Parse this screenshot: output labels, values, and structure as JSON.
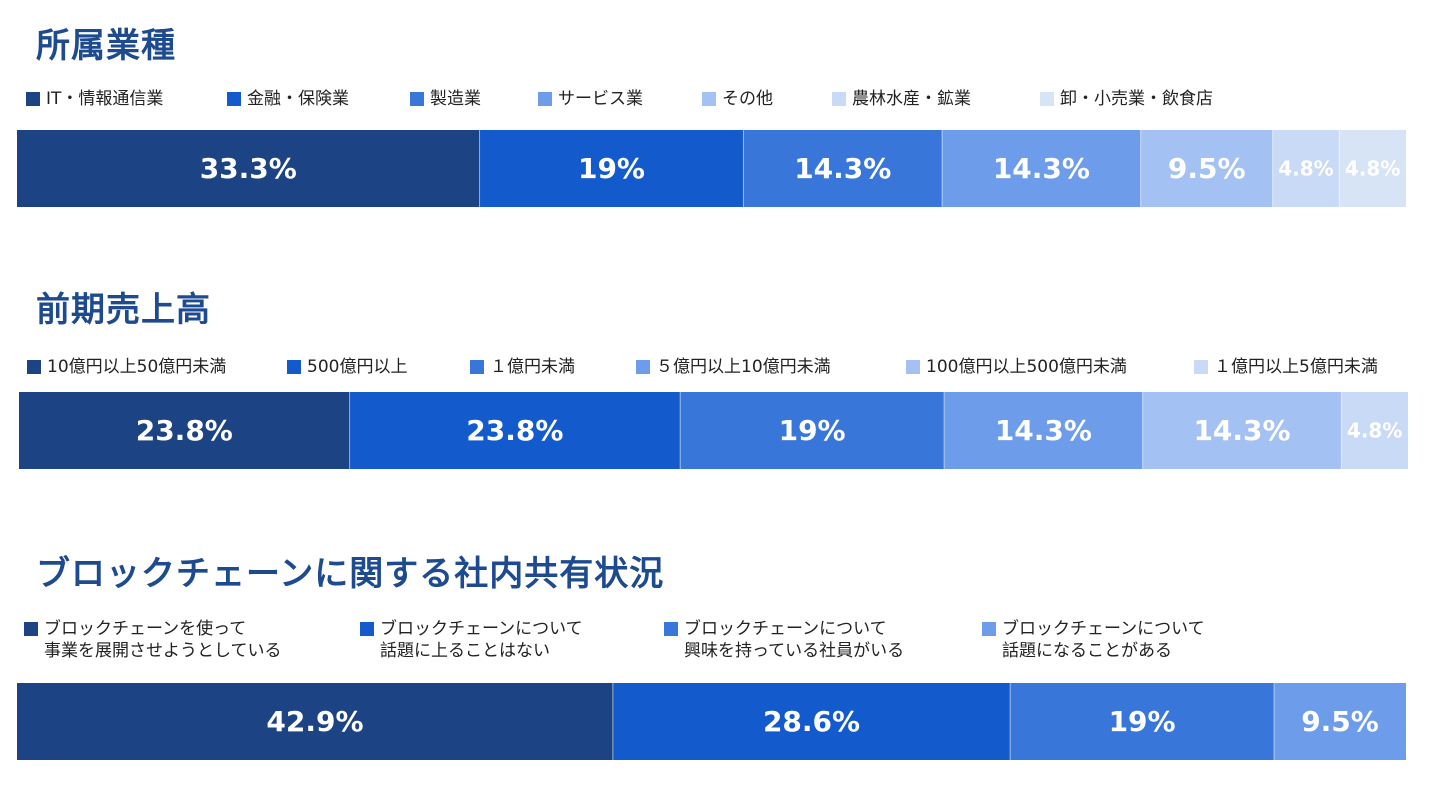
{
  "colors": [
    "#1c4384",
    "#135bcc",
    "#3877d9",
    "#6c9cea",
    "#a3c1f2",
    "#c9daf7",
    "#d6e4f6"
  ],
  "chart_data": [
    {
      "type": "stacked-bar",
      "title": "所属業種",
      "categories": [
        "IT・情報通信業",
        "金融・保険業",
        "製造業",
        "サービス業",
        "その他",
        "農林水産・鉱業",
        "卸・小売業・飲食店"
      ],
      "values": [
        33.3,
        19,
        14.3,
        14.3,
        9.5,
        4.8,
        4.8
      ],
      "labels": [
        "33.3%",
        "19%",
        "14.3%",
        "14.3%",
        "9.5%",
        "4.8%",
        "4.8%"
      ],
      "unit": "%",
      "legend": "top"
    },
    {
      "type": "stacked-bar",
      "title": "前期売上高",
      "categories": [
        "10億円以上50億円未満",
        "500億円以上",
        "１億円未満",
        "５億円以上10億円未満",
        "100億円以上500億円未満",
        "１億円以上5億円未満"
      ],
      "values": [
        23.8,
        23.8,
        19,
        14.3,
        14.3,
        4.8
      ],
      "labels": [
        "23.8%",
        "23.8%",
        "19%",
        "14.3%",
        "14.3%",
        "4.8%"
      ],
      "unit": "%",
      "legend": "top"
    },
    {
      "type": "stacked-bar",
      "title": "ブロックチェーンに関する社内共有状況",
      "categories": [
        "ブロックチェーンを使って\n事業を展開させようとしている",
        "ブロックチェーンについて\n話題に上ることはない",
        "ブロックチェーンについて\n興味を持っている社員がいる",
        "ブロックチェーンについて\n話題になることがある"
      ],
      "values": [
        42.9,
        28.6,
        19,
        9.5
      ],
      "labels": [
        "42.9%",
        "28.6%",
        "19%",
        "9.5%"
      ],
      "unit": "%",
      "legend": "top"
    }
  ]
}
